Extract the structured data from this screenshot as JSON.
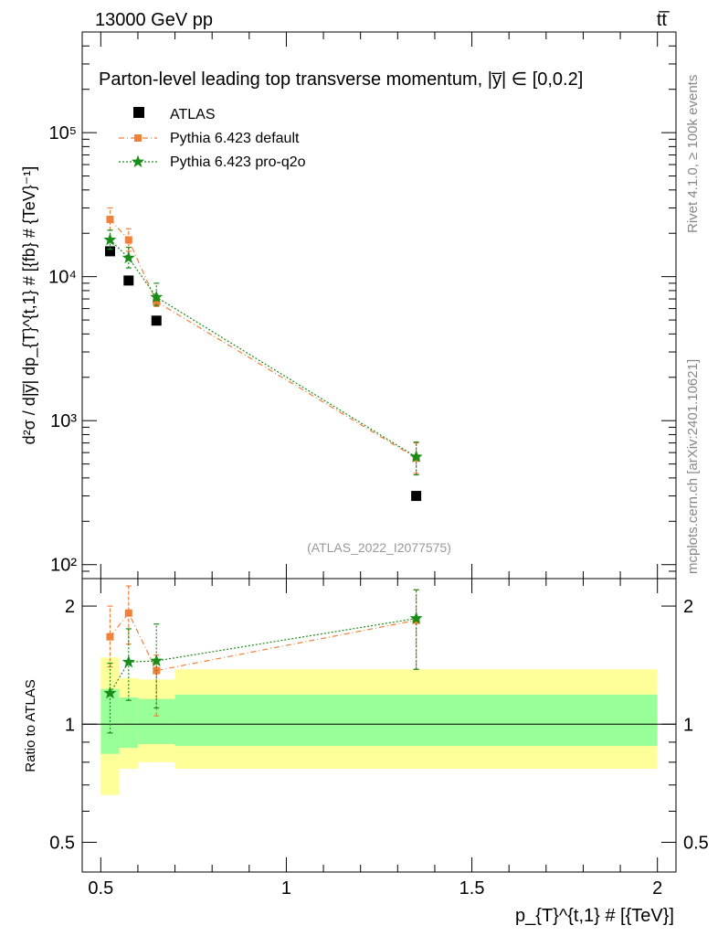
{
  "header": {
    "energy_label": "13000 GeV pp",
    "process_label": "tt̅"
  },
  "side": {
    "rivet_label": "Rivet 4.1.0, ≥ 100k events",
    "mcplots_label": "mcplots.cern.ch [arXiv:2401.10621]"
  },
  "chart_data": [
    {
      "type": "scatter",
      "panel": "main",
      "title": "Parton-level leading top transverse momentum, |y̅",
      "title_suffix": "| ∈ [0,0.2]",
      "ylabel": "d²σ / d|y̅| dp_{T}^{t,1} # [{fb} # {TeV}⁻¹]",
      "yscale": "log",
      "xlim": [
        0.45,
        2.05
      ],
      "ylim": [
        80,
        500000
      ],
      "ytick_labels": [
        "10²",
        "10³",
        "10⁴",
        "10⁵"
      ],
      "ytick_values": [
        100,
        1000,
        10000,
        100000
      ],
      "watermark": "(ATLAS_2022_I2077575)",
      "legend": [
        "ATLAS",
        "Pythia 6.423 default",
        "Pythia 6.423 pro-q2o"
      ],
      "series": [
        {
          "name": "ATLAS",
          "color": "#000000",
          "marker": "square",
          "x": [
            0.525,
            0.575,
            0.65,
            1.35
          ],
          "y": [
            15000,
            9400,
            4950,
            300
          ]
        },
        {
          "name": "Pythia 6.423 default",
          "color": "#f0803a",
          "marker": "square",
          "line": "dashdot",
          "x": [
            0.525,
            0.575,
            0.65,
            1.35
          ],
          "y": [
            25000,
            18000,
            6700,
            550
          ],
          "err_low": [
            21000,
            15000,
            6200,
            430
          ],
          "err_high": [
            30000,
            21500,
            7400,
            700
          ]
        },
        {
          "name": "Pythia 6.423 pro-q2o",
          "color": "#1a8c1a",
          "marker": "star",
          "line": "dotted",
          "x": [
            0.525,
            0.575,
            0.65,
            1.35
          ],
          "y": [
            18000,
            13500,
            7200,
            560
          ],
          "err_low": [
            15500,
            11500,
            6300,
            420
          ],
          "err_high": [
            21000,
            16000,
            9000,
            710
          ]
        }
      ]
    },
    {
      "type": "scatter",
      "panel": "ratio",
      "ylabel": "Ratio to ATLAS",
      "xlabel": "p_{T}^{t,1} # [{TeV}]",
      "xlim": [
        0.45,
        2.05
      ],
      "ylim": [
        0.42,
        2.35
      ],
      "xtick_labels": [
        "0.5",
        "1",
        "1.5",
        "2"
      ],
      "xtick_values": [
        0.5,
        1.0,
        1.5,
        2.0
      ],
      "ytick_labels": [
        "0.5",
        "1",
        "2"
      ],
      "ytick_values": [
        0.5,
        1.0,
        2.0
      ],
      "bands": [
        {
          "x0": 0.5,
          "x1": 0.55,
          "yellow": [
            0.66,
            1.48
          ],
          "green": [
            0.84,
            1.23
          ]
        },
        {
          "x0": 0.55,
          "x1": 0.6,
          "yellow": [
            0.77,
            1.31
          ],
          "green": [
            0.87,
            1.17
          ]
        },
        {
          "x0": 0.6,
          "x1": 0.7,
          "yellow": [
            0.8,
            1.3
          ],
          "green": [
            0.89,
            1.16
          ]
        },
        {
          "x0": 0.7,
          "x1": 2.0,
          "yellow": [
            0.77,
            1.38
          ],
          "green": [
            0.88,
            1.19
          ]
        }
      ],
      "series": [
        {
          "name": "Pythia 6.423 default",
          "color": "#f0803a",
          "marker": "square",
          "line": "dashdot",
          "x": [
            0.525,
            0.575,
            0.65,
            1.35
          ],
          "y": [
            1.67,
            1.92,
            1.37,
            1.84
          ],
          "err_low": [
            1.4,
            1.6,
            1.05,
            1.38
          ],
          "err_high": [
            2.0,
            2.25,
            1.5,
            2.2
          ]
        },
        {
          "name": "Pythia 6.423 pro-q2o",
          "color": "#1a8c1a",
          "marker": "star",
          "line": "dotted",
          "x": [
            0.525,
            0.575,
            0.65,
            1.35
          ],
          "y": [
            1.2,
            1.44,
            1.45,
            1.86
          ],
          "err_low": [
            0.95,
            1.15,
            1.1,
            1.38
          ],
          "err_high": [
            1.43,
            1.75,
            1.8,
            2.2
          ]
        }
      ]
    }
  ]
}
